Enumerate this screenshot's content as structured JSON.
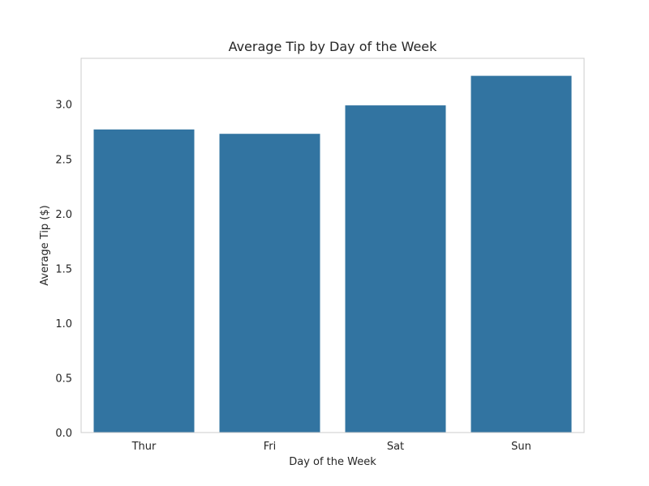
{
  "chart_data": {
    "type": "bar",
    "title": "Average Tip by Day of the Week",
    "xlabel": "Day of the Week",
    "ylabel": "Average Tip ($)",
    "categories": [
      "Thur",
      "Fri",
      "Sat",
      "Sun"
    ],
    "values": [
      2.77,
      2.73,
      2.99,
      3.26
    ],
    "ylim": [
      0,
      3.42
    ],
    "yticks": [
      "0.0",
      "0.5",
      "1.0",
      "1.5",
      "2.0",
      "2.5",
      "3.0"
    ],
    "grid": false,
    "bar_color": "#3274a1",
    "spine_color": "#cccccc"
  }
}
